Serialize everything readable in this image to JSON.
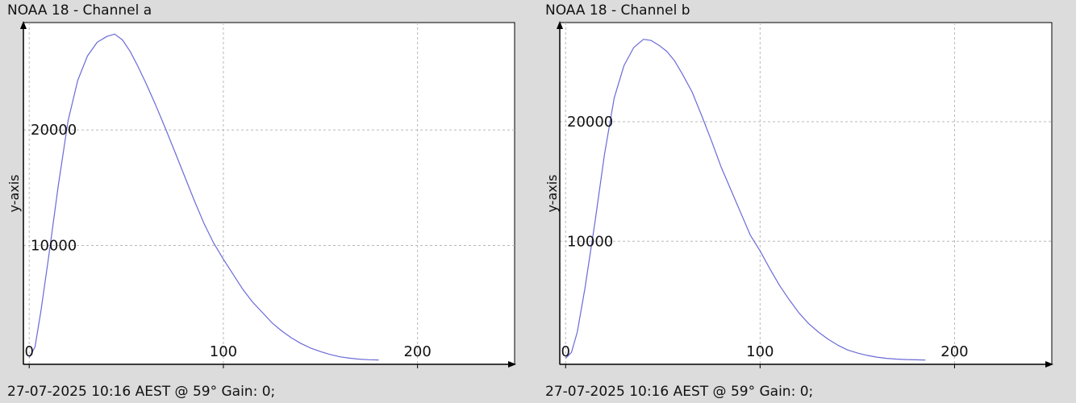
{
  "panels": [
    {
      "title": "NOAA 18 - Channel a",
      "footer": "27-07-2025 10:16 AEST @ 59° Gain: 0;"
    },
    {
      "title": "NOAA 18 - Channel b",
      "footer": "27-07-2025 10:16 AEST @ 59° Gain: 0;"
    }
  ],
  "colors": {
    "background": "#dcdcdc",
    "plot_area": "#ffffff",
    "line": "#6a6ad8",
    "grid": "#b8b8b8",
    "axis": "#000000"
  },
  "chart_data": [
    {
      "type": "line",
      "title": "NOAA 18 - Channel a",
      "ylabel": "y-axis",
      "xlabel": "",
      "xlim": [
        -3,
        250
      ],
      "ylim": [
        -300,
        29300
      ],
      "xticks": [
        0,
        100,
        200
      ],
      "yticks": [
        10000,
        20000
      ],
      "grid": true,
      "series": [
        {
          "x": [
            0,
            3,
            6,
            10,
            15,
            20,
            25,
            30,
            35,
            40,
            44,
            48,
            52,
            56,
            60,
            65,
            70,
            75,
            80,
            85,
            90,
            95,
            100,
            105,
            110,
            115,
            120,
            125,
            130,
            135,
            140,
            145,
            150,
            155,
            160,
            165,
            170,
            175,
            180
          ],
          "y": [
            300,
            1200,
            4300,
            9000,
            15200,
            20800,
            24300,
            26400,
            27600,
            28100,
            28300,
            27800,
            26800,
            25500,
            24100,
            22200,
            20200,
            18100,
            16000,
            13900,
            11900,
            10200,
            8800,
            7500,
            6200,
            5100,
            4200,
            3300,
            2600,
            2000,
            1500,
            1100,
            800,
            550,
            350,
            230,
            150,
            100,
            80
          ]
        }
      ]
    },
    {
      "type": "line",
      "title": "NOAA 18 - Channel b",
      "ylabel": "y-axis",
      "xlabel": "",
      "xlim": [
        -3,
        250
      ],
      "ylim": [
        -300,
        28300
      ],
      "xticks": [
        0,
        100,
        200
      ],
      "yticks": [
        10000,
        20000
      ],
      "grid": true,
      "series": [
        {
          "x": [
            0,
            3,
            6,
            10,
            15,
            20,
            25,
            30,
            35,
            40,
            44,
            48,
            52,
            56,
            60,
            65,
            70,
            75,
            80,
            85,
            90,
            95,
            100,
            105,
            110,
            115,
            120,
            125,
            130,
            135,
            140,
            145,
            150,
            155,
            160,
            165,
            170,
            175,
            180,
            185
          ],
          "y": [
            200,
            700,
            2400,
            6100,
            11500,
            17300,
            22000,
            24700,
            26200,
            26900,
            26800,
            26400,
            25900,
            25100,
            24000,
            22500,
            20500,
            18400,
            16200,
            14300,
            12400,
            10500,
            9200,
            7700,
            6300,
            5100,
            4000,
            3100,
            2400,
            1800,
            1300,
            900,
            650,
            450,
            300,
            200,
            140,
            100,
            80,
            60
          ]
        }
      ]
    }
  ]
}
